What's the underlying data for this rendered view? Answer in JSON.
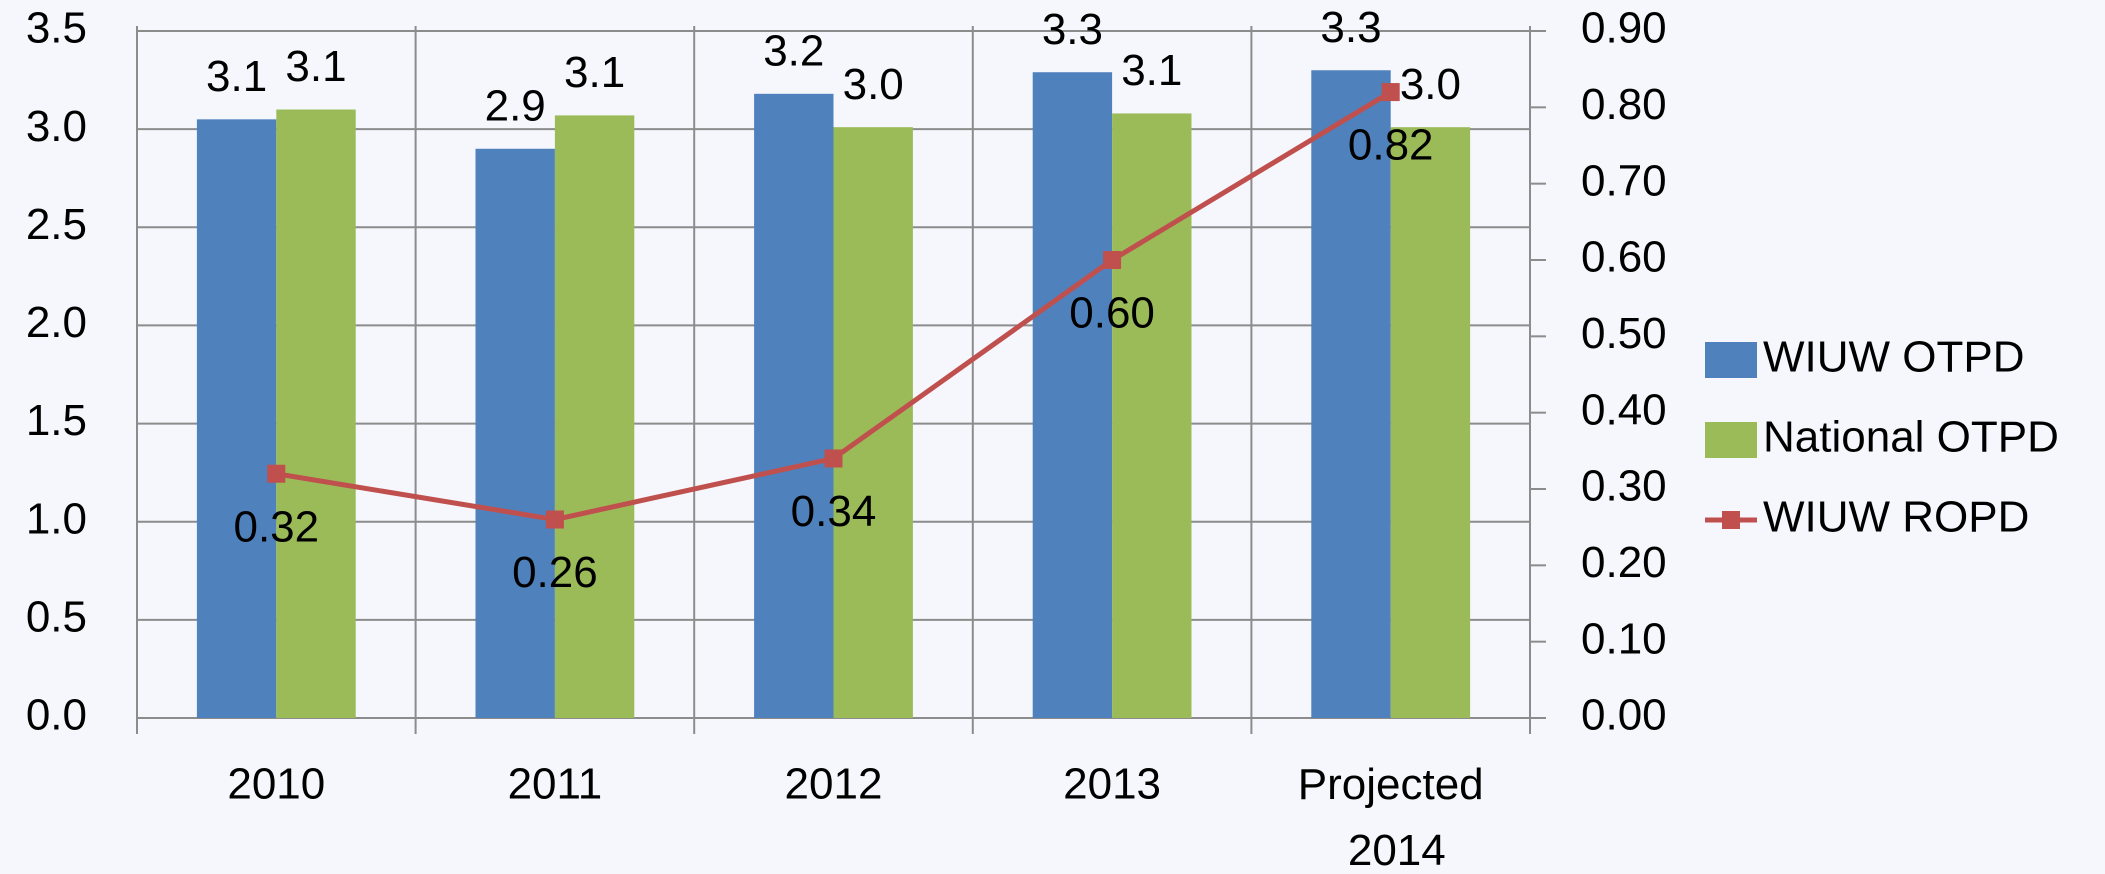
{
  "chart_data": {
    "type": "bar",
    "categories": [
      "2010",
      "2011",
      "2012",
      "2013",
      "Projected 2014"
    ],
    "series": [
      {
        "name": "WIUW OTPD",
        "color": "#4f81bd",
        "values": [
          3.05,
          2.9,
          3.18,
          3.29,
          3.3
        ],
        "value_labels": [
          "3.1",
          "2.9",
          "3.2",
          "3.3",
          "3.3"
        ]
      },
      {
        "name": "National OTPD",
        "color": "#9bbb59",
        "values": [
          3.1,
          3.07,
          3.01,
          3.08,
          3.01
        ],
        "value_labels": [
          "3.1",
          "3.1",
          "3.0",
          "3.1",
          "3.0"
        ]
      },
      {
        "name": "WIUW ROPD",
        "type": "line",
        "axis": "y2",
        "color": "#c0504d",
        "values": [
          0.32,
          0.26,
          0.34,
          0.6,
          0.82
        ],
        "value_labels": [
          "0.32",
          "0.26",
          "0.34",
          "0.60",
          "0.82"
        ]
      }
    ],
    "ylim": [
      0,
      3.5
    ],
    "yticks": [
      {
        "value": 0,
        "label": "0.0"
      },
      {
        "value": 0.5,
        "label": "0.5"
      },
      {
        "value": 1,
        "label": "1.0"
      },
      {
        "value": 1.5,
        "label": "1.5"
      },
      {
        "value": 2,
        "label": "2.0"
      },
      {
        "value": 2.5,
        "label": "2.5"
      },
      {
        "value": 3,
        "label": "3.0"
      },
      {
        "value": 3.5,
        "label": "3.5"
      }
    ],
    "y2lim": [
      0,
      0.9
    ],
    "y2ticks": [
      {
        "value": 0,
        "label": "0.00"
      },
      {
        "value": 0.1,
        "label": "0.10"
      },
      {
        "value": 0.2,
        "label": "0.20"
      },
      {
        "value": 0.3,
        "label": "0.30"
      },
      {
        "value": 0.4,
        "label": "0.40"
      },
      {
        "value": 0.5,
        "label": "0.50"
      },
      {
        "value": 0.6,
        "label": "0.60"
      },
      {
        "value": 0.7,
        "label": "0.70"
      },
      {
        "value": 0.8,
        "label": "0.80"
      },
      {
        "value": 0.9,
        "label": "0.90"
      }
    ],
    "grid": true,
    "legend": "right"
  }
}
